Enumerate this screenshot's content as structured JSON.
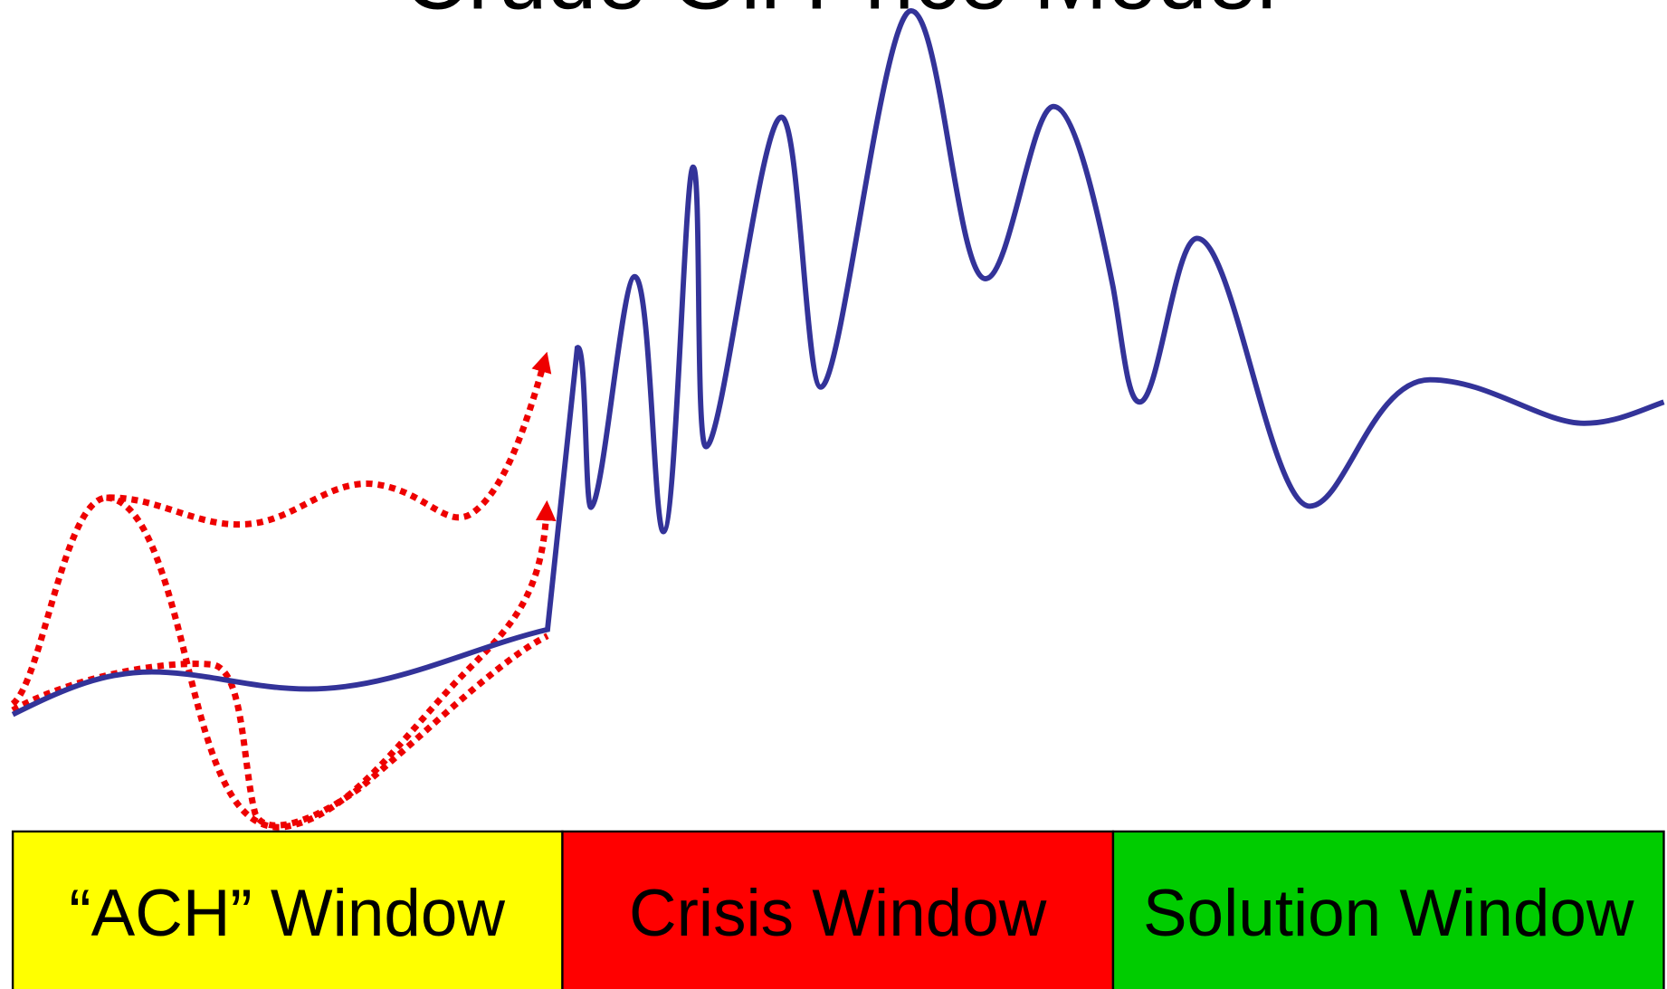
{
  "title": "Crude Oil Price Model",
  "windows": [
    "“ACH” Window",
    "Crisis Window",
    "Solution Window"
  ]
}
